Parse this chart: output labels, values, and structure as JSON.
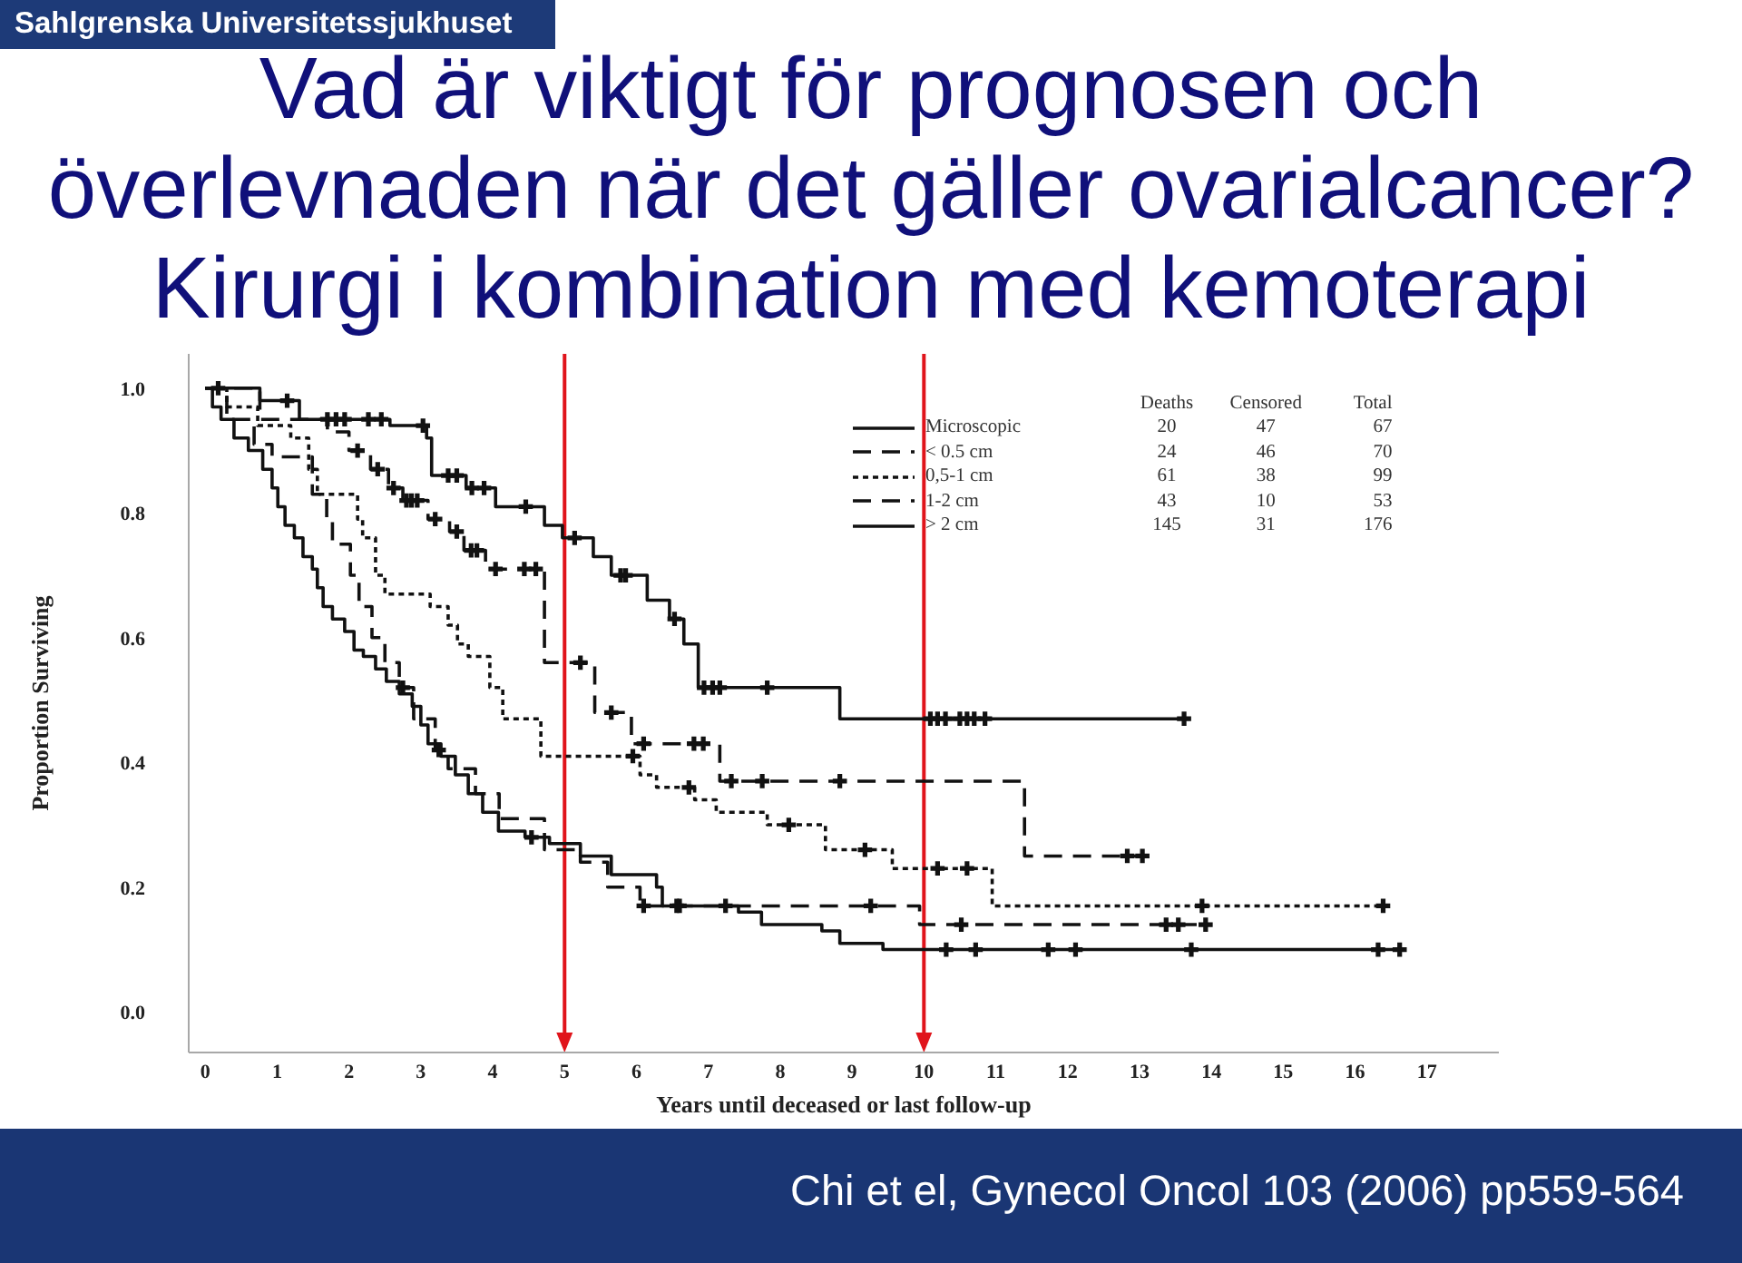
{
  "chart_data": {
    "type": "step",
    "title": "Vad är viktigt för prognosen och\növerlevnaden när det gäller ovarialcancer?",
    "subtitle": "Kirurgi i kombination med kemoterapi",
    "xlabel": "Years until deceased or last follow-up",
    "ylabel": "Proportion Surviving",
    "annotations": [
      "Deaths",
      "Censored",
      "Total",
      "20 47 67",
      "24 46 70",
      "61 38 99",
      "43 10 53",
      "145 31 176",
      "Chi et el, Gynecol Oncol 103 (2006) pp559-564",
      "Sahlgrenska Universitetssjukhuset"
    ],
    "xlim": [
      -0.23,
      18
    ],
    "ylim": [
      -0.065,
      1.055
    ],
    "xticks": [
      0,
      1,
      2,
      3,
      4,
      5,
      6,
      7,
      8,
      9,
      10,
      11,
      12,
      13,
      14,
      15,
      16,
      17
    ],
    "yticks": [
      {
        "value": 0,
        "label": "0.0"
      },
      {
        "value": 0.2,
        "label": "0.2"
      },
      {
        "value": 0.4,
        "label": "0.4"
      },
      {
        "value": 0.6,
        "label": "0.6"
      },
      {
        "value": 0.8,
        "label": "0.8"
      },
      {
        "value": 1,
        "label": "1.0"
      }
    ],
    "legend": "top right",
    "ref_lines": [
      {
        "axis": "x",
        "value": 5,
        "color": "#e0141b"
      },
      {
        "axis": "x",
        "value": 10,
        "color": "#e0141b"
      }
    ],
    "series": [
      {
        "name": "Microscopic",
        "color": "#111111",
        "line_style": "solid",
        "x": [
          0,
          0.76,
          1.31,
          2.57,
          3.08,
          3.15,
          3.63,
          4.04,
          4.72,
          4.97,
          5.4,
          5.65,
          6.15,
          6.46,
          6.66,
          6.86,
          8.83,
          13.62
        ],
        "values": [
          1,
          0.98,
          0.95,
          0.94,
          0.92,
          0.86,
          0.84,
          0.81,
          0.78,
          0.76,
          0.73,
          0.7,
          0.66,
          0.63,
          0.59,
          0.52,
          0.47,
          0.47
        ]
      },
      {
        "name": "< 0.5 cm",
        "color": "#111111",
        "line_style": "dashed",
        "x": [
          0,
          0.76,
          1.7,
          2.0,
          2.3,
          2.55,
          2.75,
          3.1,
          3.4,
          3.6,
          3.9,
          4.72,
          5.42,
          5.93,
          7.16,
          11.4,
          13.09
        ],
        "values": [
          1,
          0.95,
          0.93,
          0.9,
          0.87,
          0.84,
          0.82,
          0.79,
          0.77,
          0.74,
          0.71,
          0.56,
          0.48,
          0.43,
          0.37,
          0.25,
          0.25
        ]
      },
      {
        "name": "0,5-1 cm",
        "color": "#111111",
        "line_style": "dotted",
        "x": [
          0,
          0.3,
          0.73,
          1.19,
          1.44,
          1.56,
          2.12,
          2.19,
          2.37,
          2.5,
          3.13,
          3.38,
          3.51,
          3.66,
          3.96,
          4.14,
          4.67,
          6.05,
          6.28,
          6.81,
          7.11,
          7.82,
          8.63,
          9.56,
          10.95,
          16.39
        ],
        "values": [
          1,
          0.97,
          0.94,
          0.92,
          0.87,
          0.83,
          0.79,
          0.76,
          0.7,
          0.67,
          0.65,
          0.62,
          0.59,
          0.57,
          0.52,
          0.47,
          0.41,
          0.38,
          0.36,
          0.34,
          0.32,
          0.3,
          0.26,
          0.23,
          0.17,
          0.17
        ]
      },
      {
        "name": "1-2 cm",
        "color": "#111111",
        "line_style": "dashed",
        "x": [
          0,
          0.3,
          0.68,
          0.93,
          1.49,
          1.69,
          1.77,
          2.02,
          2.14,
          2.32,
          2.5,
          2.7,
          2.9,
          3.2,
          3.38,
          3.76,
          4.09,
          4.72,
          5.22,
          5.6,
          6.05,
          9.94,
          13.97
        ],
        "values": [
          1,
          0.95,
          0.91,
          0.89,
          0.83,
          0.79,
          0.75,
          0.7,
          0.65,
          0.6,
          0.56,
          0.52,
          0.47,
          0.42,
          0.39,
          0.35,
          0.31,
          0.26,
          0.24,
          0.2,
          0.17,
          0.14,
          0.14
        ]
      },
      {
        "name": "> 2 cm",
        "color": "#111111",
        "line_style": "solid",
        "x": [
          0,
          0.1,
          0.22,
          0.4,
          0.6,
          0.8,
          0.93,
          1.01,
          1.11,
          1.24,
          1.36,
          1.49,
          1.56,
          1.64,
          1.77,
          1.94,
          2.07,
          2.2,
          2.37,
          2.52,
          2.7,
          2.88,
          3.0,
          3.1,
          3.28,
          3.48,
          3.66,
          3.86,
          4.08,
          4.45,
          4.79,
          5.22,
          5.65,
          6.28,
          6.36,
          7.42,
          7.74,
          8.58,
          8.83,
          9.43,
          16.62
        ],
        "values": [
          1,
          0.97,
          0.95,
          0.92,
          0.9,
          0.87,
          0.84,
          0.81,
          0.78,
          0.76,
          0.73,
          0.71,
          0.68,
          0.65,
          0.63,
          0.61,
          0.58,
          0.57,
          0.55,
          0.53,
          0.51,
          0.49,
          0.46,
          0.43,
          0.41,
          0.38,
          0.35,
          0.32,
          0.29,
          0.28,
          0.27,
          0.25,
          0.22,
          0.2,
          0.17,
          0.16,
          0.14,
          0.13,
          0.11,
          0.1,
          0.1
        ]
      },
      {
        "type": "scatter",
        "color": "#111111",
        "marker": "cross",
        "x": [
          0.18,
          1.14,
          1.7,
          1.82,
          1.94,
          2.27,
          2.45,
          3.03,
          3.38,
          3.5,
          3.71,
          3.88,
          4.46,
          5.14,
          5.78,
          5.85,
          6.53,
          6.94,
          7.06,
          7.16,
          7.82,
          10.09,
          10.19,
          10.3,
          10.5,
          10.6,
          10.7,
          10.85,
          13.62,
          2.12,
          2.4,
          2.62,
          2.8,
          2.87,
          2.95,
          3.2,
          3.5,
          3.7,
          3.78,
          4.04,
          4.44,
          4.6,
          5.22,
          5.65,
          6.1,
          6.8,
          6.93,
          7.32,
          7.75,
          8.83,
          12.83,
          13.04,
          5.95,
          6.73,
          8.12,
          9.18,
          10.19,
          10.6,
          13.87,
          16.39,
          2.75,
          3.25,
          6.1,
          6.6,
          7.24,
          9.26,
          10.52,
          13.37,
          13.54,
          13.92,
          4.54,
          6.56,
          10.31,
          10.72,
          11.73,
          12.11,
          13.72,
          16.32,
          16.62
        ],
        "values": [
          1,
          0.98,
          0.95,
          0.95,
          0.95,
          0.95,
          0.95,
          0.94,
          0.86,
          0.86,
          0.84,
          0.84,
          0.81,
          0.76,
          0.7,
          0.7,
          0.63,
          0.52,
          0.52,
          0.52,
          0.52,
          0.47,
          0.47,
          0.47,
          0.47,
          0.47,
          0.47,
          0.47,
          0.47,
          0.9,
          0.87,
          0.84,
          0.82,
          0.82,
          0.82,
          0.79,
          0.77,
          0.74,
          0.74,
          0.71,
          0.71,
          0.71,
          0.56,
          0.48,
          0.43,
          0.43,
          0.43,
          0.37,
          0.37,
          0.37,
          0.25,
          0.25,
          0.41,
          0.36,
          0.3,
          0.26,
          0.23,
          0.23,
          0.17,
          0.17,
          0.52,
          0.42,
          0.17,
          0.17,
          0.17,
          0.17,
          0.14,
          0.14,
          0.14,
          0.14,
          0.28,
          0.17,
          0.1,
          0.1,
          0.1,
          0.1,
          0.1,
          0.1,
          0.1
        ]
      }
    ]
  }
}
